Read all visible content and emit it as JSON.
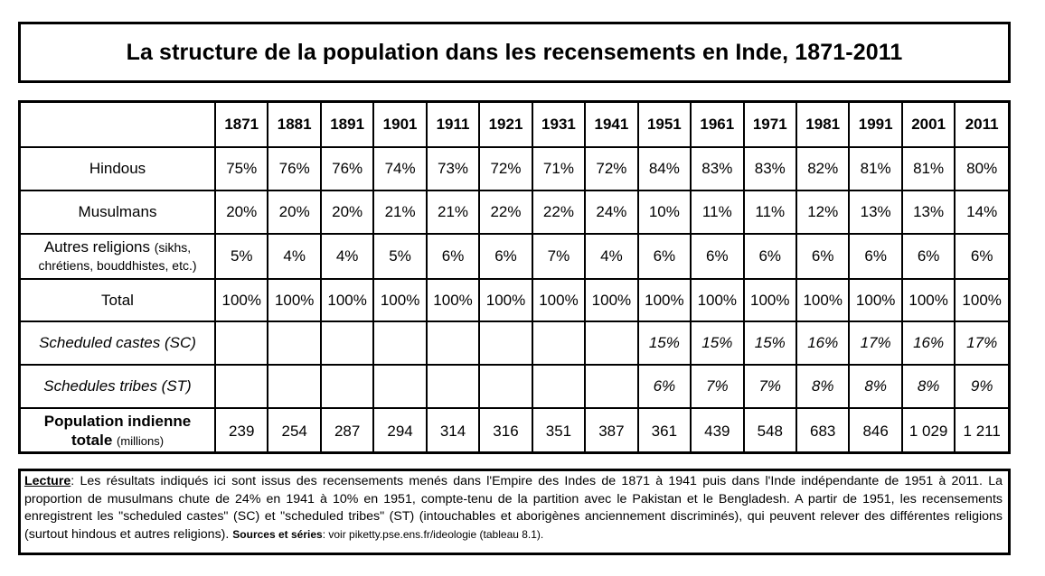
{
  "title": "La structure de la population dans les recensements en Inde, 1871-2011",
  "years": [
    "1871",
    "1881",
    "1891",
    "1901",
    "1911",
    "1921",
    "1931",
    "1941",
    "1951",
    "1961",
    "1971",
    "1981",
    "1991",
    "2001",
    "2011"
  ],
  "rows": {
    "hindous": {
      "label": "Hindous",
      "values": [
        "75%",
        "76%",
        "76%",
        "74%",
        "73%",
        "72%",
        "71%",
        "72%",
        "84%",
        "83%",
        "83%",
        "82%",
        "81%",
        "81%",
        "80%"
      ]
    },
    "musulmans": {
      "label": "Musulmans",
      "values": [
        "20%",
        "20%",
        "20%",
        "21%",
        "21%",
        "22%",
        "22%",
        "24%",
        "10%",
        "11%",
        "11%",
        "12%",
        "13%",
        "13%",
        "14%"
      ]
    },
    "autres": {
      "label": "Autres religions",
      "label_note": "(sikhs,",
      "label_line2": "chrétiens, bouddhistes, etc.)",
      "values": [
        "5%",
        "4%",
        "4%",
        "5%",
        "6%",
        "6%",
        "7%",
        "4%",
        "6%",
        "6%",
        "6%",
        "6%",
        "6%",
        "6%",
        "6%"
      ]
    },
    "total": {
      "label": "Total",
      "values": [
        "100%",
        "100%",
        "100%",
        "100%",
        "100%",
        "100%",
        "100%",
        "100%",
        "100%",
        "100%",
        "100%",
        "100%",
        "100%",
        "100%",
        "100%"
      ]
    },
    "sc": {
      "label": "Scheduled castes (SC)",
      "values": [
        "",
        "",
        "",
        "",
        "",
        "",
        "",
        "",
        "15%",
        "15%",
        "15%",
        "16%",
        "17%",
        "16%",
        "17%"
      ]
    },
    "st": {
      "label": "Schedules tribes (ST)",
      "values": [
        "",
        "",
        "",
        "",
        "",
        "",
        "",
        "",
        "6%",
        "7%",
        "7%",
        "8%",
        "8%",
        "8%",
        "9%"
      ]
    },
    "population": {
      "label_line1": "Population indienne",
      "label_line2": "totale",
      "label_unit": "(millions)",
      "values": [
        "239",
        "254",
        "287",
        "294",
        "314",
        "316",
        "351",
        "387",
        "361",
        "439",
        "548",
        "683",
        "846",
        "1 029",
        "1 211"
      ]
    }
  },
  "note": {
    "lecture_label": "Lecture",
    "lecture_text": ": Les résultats indiqués ici sont issus des recensements menés dans l'Empire des Indes de 1871 à 1941 puis dans l'Inde indépendante de 1951 à 2011. La proportion de musulmans chute de 24% en 1941 à 10% en 1951, compte-tenu de la partition avec le Pakistan et le Bengladesh. A partir de 1951, les recensements enregistrent les \"scheduled castes\" (SC) et \"scheduled tribes\" (ST) (intouchables et aborigènes anciennement discriminés), qui peuvent relever des différentes religions (surtout hindous et autres religions).",
    "sources_label": "Sources et séries",
    "sources_text": ": voir piketty.pse.ens.fr/ideologie (tableau 8.1)."
  }
}
